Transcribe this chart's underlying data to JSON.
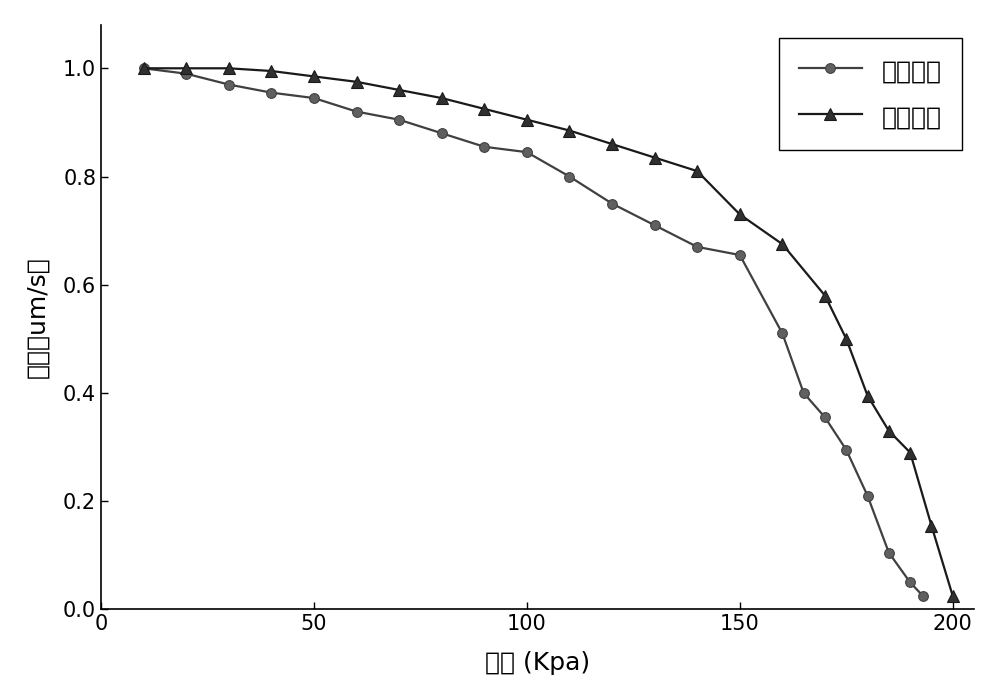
{
  "sim_x": [
    10,
    20,
    30,
    40,
    50,
    60,
    70,
    80,
    90,
    100,
    110,
    120,
    130,
    140,
    150,
    160,
    165,
    170,
    175,
    180,
    185,
    190,
    193
  ],
  "sim_y": [
    1.0,
    0.99,
    0.97,
    0.955,
    0.945,
    0.92,
    0.905,
    0.88,
    0.855,
    0.845,
    0.8,
    0.75,
    0.71,
    0.67,
    0.655,
    0.51,
    0.4,
    0.355,
    0.295,
    0.21,
    0.105,
    0.05,
    0.025
  ],
  "exp_x": [
    10,
    20,
    30,
    40,
    50,
    60,
    70,
    80,
    90,
    100,
    110,
    120,
    130,
    140,
    150,
    160,
    170,
    175,
    180,
    185,
    190,
    195,
    200
  ],
  "exp_y": [
    1.0,
    1.0,
    1.0,
    0.995,
    0.985,
    0.975,
    0.96,
    0.945,
    0.925,
    0.905,
    0.885,
    0.86,
    0.835,
    0.81,
    0.73,
    0.675,
    0.58,
    0.5,
    0.395,
    0.33,
    0.29,
    0.155,
    0.025
  ],
  "xlabel": "应力 (Kpa)",
  "ylabel": "速度（um/s）",
  "legend_sim": "仿真结果",
  "legend_exp": "实验结果",
  "xlim": [
    0,
    205
  ],
  "ylim": [
    0.0,
    1.08
  ],
  "xticks": [
    0,
    50,
    100,
    150,
    200
  ],
  "yticks": [
    0.0,
    0.2,
    0.4,
    0.6,
    0.8,
    1.0
  ],
  "line_color": "#404040",
  "marker_sim": "o",
  "marker_exp": "^",
  "marker_color_sim": "#606060",
  "marker_color_exp": "#303030",
  "linewidth": 1.6,
  "markersize_sim": 7,
  "markersize_exp": 8,
  "bg_color": "#ffffff",
  "legend_fontsize": 18,
  "axis_label_fontsize": 18,
  "tick_fontsize": 15
}
